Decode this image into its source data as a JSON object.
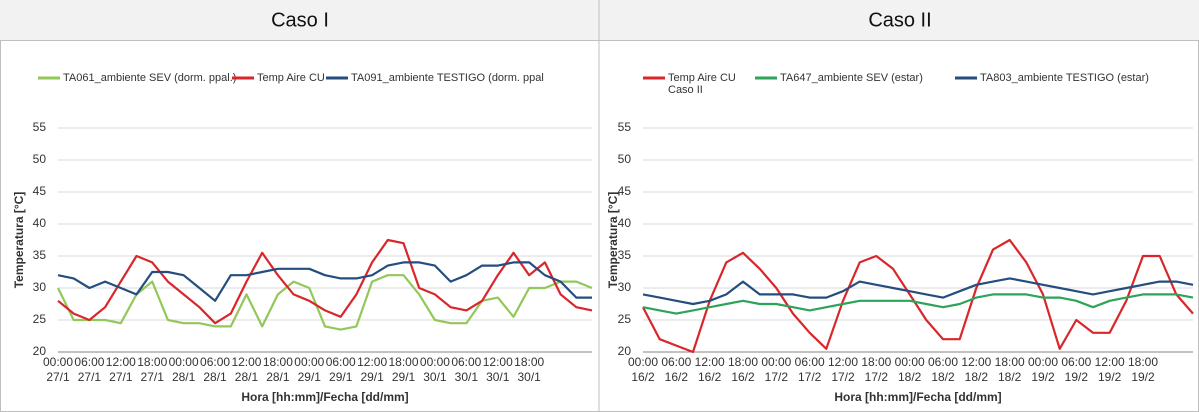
{
  "chart_data": [
    {
      "type": "line",
      "title": "Caso I",
      "x_label": "Hora [hh:mm]/Fecha [dd/mm]",
      "y_label": "Temperatura [°C]",
      "categories": [
        "00:00",
        null,
        "06:00",
        null,
        "12:00",
        null,
        "18:00",
        null,
        "00:00",
        null,
        "06:00",
        null,
        "12:00",
        null,
        "18:00",
        null,
        "00:00",
        null,
        "06:00",
        null,
        "12:00",
        null,
        "18:00",
        null,
        "00:00",
        null,
        "06:00",
        null,
        "12:00",
        null,
        "18:00",
        null,
        null,
        null,
        null
      ],
      "category_dates": [
        "27/1",
        null,
        "27/1",
        null,
        "27/1",
        null,
        "27/1",
        null,
        "28/1",
        null,
        "28/1",
        null,
        "28/1",
        null,
        "28/1",
        null,
        "29/1",
        null,
        "29/1",
        null,
        "29/1",
        null,
        "29/1",
        null,
        "30/1",
        null,
        "30/1",
        null,
        "30/1",
        null,
        "30/1",
        null,
        null,
        null,
        null
      ],
      "ylim": [
        20,
        55
      ],
      "yticks": [
        20,
        25,
        30,
        35,
        40,
        45,
        50,
        55
      ],
      "grid": true,
      "legend": "top",
      "series": [
        {
          "name": "TA061_ambiente SEV (dorm. ppal.)",
          "color": "#92c85a",
          "values": [
            30,
            25,
            25,
            25,
            24.5,
            29,
            31,
            25,
            24.5,
            24.5,
            24,
            24,
            29,
            24,
            29,
            31,
            30,
            24,
            23.5,
            24,
            31,
            32,
            32,
            29,
            25,
            24.5,
            24.5,
            28,
            28.5,
            25.5,
            30,
            30,
            31,
            31,
            30
          ]
        },
        {
          "name": "Temp Aire CU",
          "color": "#d9262b",
          "values": [
            28,
            26,
            25,
            27,
            31,
            35,
            34,
            31,
            29,
            27,
            24.5,
            26,
            31,
            35.5,
            32,
            29,
            28,
            26.5,
            25.5,
            29,
            34,
            37.5,
            37,
            30,
            29,
            27,
            26.5,
            28,
            32,
            35.5,
            32,
            34,
            29,
            27,
            26.5
          ]
        },
        {
          "name": "TA091_ambiente  TESTIGO (dorm. ppal",
          "color": "#254d7d",
          "values": [
            32,
            31.5,
            30,
            31,
            30,
            29,
            32.5,
            32.5,
            32,
            30,
            28,
            32,
            32,
            32.5,
            33,
            33,
            33,
            32,
            31.5,
            31.5,
            32,
            33.5,
            34,
            34,
            33.5,
            31,
            32,
            33.5,
            33.5,
            34,
            34,
            32,
            31,
            28.5,
            28.5
          ]
        }
      ]
    },
    {
      "type": "line",
      "title": "Caso II",
      "x_label": "Hora [hh:mm]/Fecha [dd/mm]",
      "y_label": "Temperatura [°C]",
      "categories": [
        "00:00",
        null,
        "06:00",
        null,
        "12:00",
        null,
        "18:00",
        null,
        "00:00",
        null,
        "06:00",
        null,
        "12:00",
        null,
        "18:00",
        null,
        "00:00",
        null,
        "06:00",
        null,
        "12:00",
        null,
        "18:00",
        null,
        "00:00",
        null,
        "06:00",
        null,
        "12:00",
        null,
        "18:00",
        null,
        null,
        null
      ],
      "category_dates": [
        "16/2",
        null,
        "16/2",
        null,
        "16/2",
        null,
        "16/2",
        null,
        "17/2",
        null,
        "17/2",
        null,
        "17/2",
        null,
        "17/2",
        null,
        "18/2",
        null,
        "18/2",
        null,
        "18/2",
        null,
        "18/2",
        null,
        "19/2",
        null,
        "19/2",
        null,
        "19/2",
        null,
        "19/2",
        null,
        null,
        null
      ],
      "ylim": [
        20,
        55
      ],
      "yticks": [
        20,
        25,
        30,
        35,
        40,
        45,
        50,
        55
      ],
      "grid": true,
      "legend": "top",
      "series": [
        {
          "name": "Temp Aire CU Caso II",
          "color": "#d9262b",
          "values": [
            27,
            22,
            21,
            20,
            28,
            34,
            35.5,
            33,
            30,
            26,
            23,
            20.5,
            28,
            34,
            35,
            33,
            29,
            25,
            22,
            22,
            30,
            36,
            37.5,
            34,
            29,
            20.5,
            25,
            23,
            23,
            28,
            35,
            35,
            29,
            26
          ]
        },
        {
          "name": "TA647_ambiente SEV (estar)",
          "color": "#2ea35a",
          "values": [
            27,
            26.5,
            26,
            26.5,
            27,
            27.5,
            28,
            27.5,
            27.5,
            27,
            26.5,
            27,
            27.5,
            28,
            28,
            28,
            28,
            27.5,
            27,
            27.5,
            28.5,
            29,
            29,
            29,
            28.5,
            28.5,
            28,
            27,
            28,
            28.5,
            29,
            29,
            29,
            28.5
          ]
        },
        {
          "name": "TA803_ambiente TESTIGO (estar)",
          "color": "#254d7d",
          "values": [
            29,
            28.5,
            28,
            27.5,
            28,
            29,
            31,
            29,
            29,
            29,
            28.5,
            28.5,
            29.5,
            31,
            30.5,
            30,
            29.5,
            29,
            28.5,
            29.5,
            30.5,
            31,
            31.5,
            31,
            30.5,
            30,
            29.5,
            29,
            29.5,
            30,
            30.5,
            31,
            31,
            30.5
          ]
        }
      ]
    }
  ]
}
